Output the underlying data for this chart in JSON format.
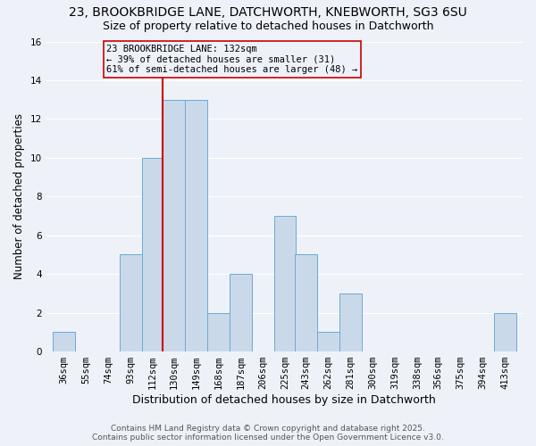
{
  "title1": "23, BROOKBRIDGE LANE, DATCHWORTH, KNEBWORTH, SG3 6SU",
  "title2": "Size of property relative to detached houses in Datchworth",
  "xlabel": "Distribution of detached houses by size in Datchworth",
  "ylabel": "Number of detached properties",
  "bin_labels": [
    "36sqm",
    "55sqm",
    "74sqm",
    "93sqm",
    "112sqm",
    "130sqm",
    "149sqm",
    "168sqm",
    "187sqm",
    "206sqm",
    "225sqm",
    "243sqm",
    "262sqm",
    "281sqm",
    "300sqm",
    "319sqm",
    "338sqm",
    "356sqm",
    "375sqm",
    "394sqm",
    "413sqm"
  ],
  "bin_edges": [
    36,
    55,
    74,
    93,
    112,
    130,
    149,
    168,
    187,
    206,
    225,
    243,
    262,
    281,
    300,
    319,
    338,
    356,
    375,
    394,
    413
  ],
  "counts": [
    1,
    0,
    0,
    5,
    10,
    13,
    13,
    2,
    4,
    0,
    7,
    5,
    1,
    3,
    0,
    0,
    0,
    0,
    0,
    0,
    2
  ],
  "bar_color": "#c9d9ea",
  "bar_edgecolor": "#6aaad4",
  "vline_x": 130,
  "vline_color": "#cc0000",
  "annotation_lines": [
    "23 BROOKBRIDGE LANE: 132sqm",
    "← 39% of detached houses are smaller (31)",
    "61% of semi-detached houses are larger (48) →"
  ],
  "annotation_box_edgecolor": "#cc0000",
  "ylim": [
    0,
    16
  ],
  "yticks": [
    0,
    2,
    4,
    6,
    8,
    10,
    12,
    14,
    16
  ],
  "footer1": "Contains HM Land Registry data © Crown copyright and database right 2025.",
  "footer2": "Contains public sector information licensed under the Open Government Licence v3.0.",
  "bg_color": "#eef2f8",
  "title1_fontsize": 10,
  "title2_fontsize": 9,
  "xlabel_fontsize": 9,
  "ylabel_fontsize": 8.5,
  "tick_fontsize": 7.5,
  "annotation_fontsize": 7.5,
  "footer_fontsize": 6.5
}
